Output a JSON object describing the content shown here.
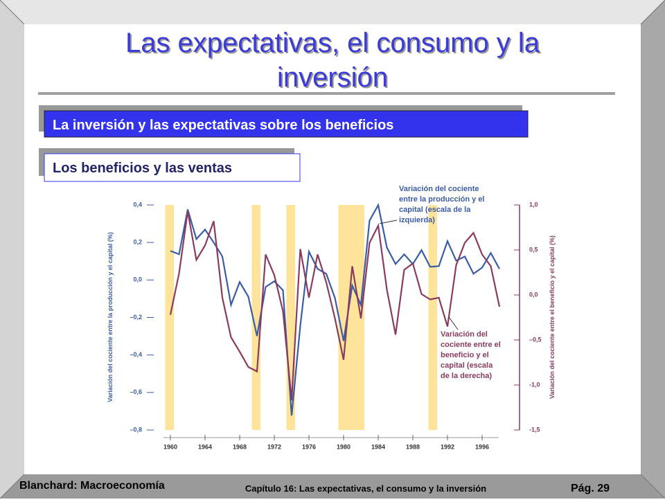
{
  "header": {
    "title_lines": [
      "Las expectativas, el consumo y la",
      "inversión"
    ],
    "box1": "La inversión y las expectativas sobre los beneficios",
    "box2": "Los beneficios y las ventas"
  },
  "footer": {
    "left": "Blanchard: Macroeconomía",
    "center": "Capítulo 16: Las expectativas, el consumo y la inversión",
    "right": "Pág. 29"
  },
  "chart_data": {
    "type": "line",
    "ylabel": "Variación del cociente entre la producción y el capital (%)",
    "y2label": "Variación del cociente entre el beneficio y el capital (%)",
    "x": [
      1960,
      1961,
      1962,
      1963,
      1964,
      1965,
      1966,
      1967,
      1968,
      1969,
      1970,
      1971,
      1972,
      1973,
      1974,
      1975,
      1976,
      1977,
      1978,
      1979,
      1980,
      1981,
      1982,
      1983,
      1984,
      1985,
      1986,
      1987,
      1988,
      1989,
      1990,
      1991,
      1992,
      1993,
      1994,
      1995,
      1996,
      1997,
      1998
    ],
    "xlim": [
      1959,
      1999.5
    ],
    "xticks": [
      1960,
      1964,
      1968,
      1972,
      1976,
      1980,
      1984,
      1988,
      1992,
      1996
    ],
    "ylim": [
      -0.8,
      0.4
    ],
    "yticks": [
      {
        "value": 0.4,
        "label": "0,4"
      },
      {
        "value": 0.2,
        "label": "0,2"
      },
      {
        "value": 0,
        "label": "0,0"
      },
      {
        "value": -0.2,
        "label": "–0,2"
      },
      {
        "value": -0.4,
        "label": "–0,4"
      },
      {
        "value": -0.6,
        "label": "–0,6"
      },
      {
        "value": -0.8,
        "label": "–0,8"
      }
    ],
    "y2lim": [
      -1.5,
      1.0
    ],
    "y2ticks": [
      {
        "value": 1.0,
        "label": "1,0"
      },
      {
        "value": 0.5,
        "label": "0,5"
      },
      {
        "value": 0,
        "label": "0,0"
      },
      {
        "value": -0.5,
        "label": "–0,5"
      },
      {
        "value": -1.0,
        "label": "-1,0"
      },
      {
        "value": -1.5,
        "label": "-1,5"
      }
    ],
    "recessions": [
      [
        1959.4,
        1960.4
      ],
      [
        1969.4,
        1970.4
      ],
      [
        1973.4,
        1974.4
      ],
      [
        1979.4,
        1982.4
      ],
      [
        1989.8,
        1990.8
      ]
    ],
    "recession_color": "#fde49a",
    "series": [
      {
        "name": "Variación del cociente entre la producción y el capital",
        "color": "#3a5ca6",
        "axis": "y",
        "values": [
          0.155,
          0.137,
          0.376,
          0.218,
          0.269,
          0.2,
          0.125,
          -0.133,
          -0.011,
          -0.089,
          -0.299,
          -0.037,
          -0.007,
          -0.055,
          -0.723,
          -0.244,
          0.151,
          0.059,
          0.033,
          -0.096,
          -0.325,
          -0.03,
          -0.133,
          0.317,
          0.399,
          0.173,
          0.085,
          0.137,
          0.085,
          0.159,
          0.07,
          0.074,
          0.207,
          0.103,
          0.125,
          0.033,
          0.066,
          0.144,
          0.059
        ]
      },
      {
        "name": "Variación del cociente entre el beneficio y el capital",
        "color": "#8a3a5e",
        "axis": "y2",
        "values": [
          -0.22,
          0.24,
          0.93,
          0.39,
          0.55,
          0.82,
          -0.03,
          -0.47,
          -0.63,
          -0.8,
          -0.85,
          0.45,
          0.22,
          -0.18,
          -1.17,
          0.51,
          -0.03,
          0.45,
          0.14,
          -0.26,
          -0.72,
          0.32,
          -0.26,
          0.58,
          0.77,
          0.06,
          -0.44,
          0.28,
          0.35,
          0.01,
          -0.05,
          -0.03,
          -0.35,
          0.33,
          0.58,
          0.69,
          0.45,
          0.32,
          -0.13
        ]
      }
    ],
    "annotations": [
      {
        "lines": [
          "Variación del cociente",
          "entre la producción y el",
          "capital (escala de la",
          "izquierda)"
        ]
      },
      {
        "lines": [
          "Variación del",
          "cociente entre el",
          "beneficio y el",
          "capital (escala",
          "de la derecha)"
        ]
      }
    ]
  }
}
